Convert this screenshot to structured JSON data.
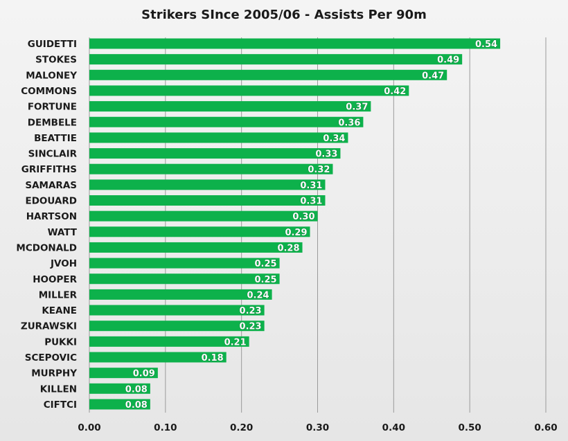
{
  "chart_data": {
    "type": "bar",
    "orientation": "horizontal",
    "title": "Strikers SInce 2005/06 - Assists Per 90m",
    "xlabel": "",
    "ylabel": "",
    "xlim": [
      0,
      0.6
    ],
    "x_ticks": [
      "0.00",
      "0.10",
      "0.20",
      "0.30",
      "0.40",
      "0.50",
      "0.60"
    ],
    "grid": true,
    "bar_color": "#0db14b",
    "categories": [
      "GUIDETTI",
      "STOKES",
      "MALONEY",
      "COMMONS",
      "FORTUNE",
      "DEMBELE",
      "BEATTIE",
      "SINCLAIR",
      "GRIFFITHS",
      "SAMARAS",
      "EDOUARD",
      "HARTSON",
      "WATT",
      "MCDONALD",
      "JVOH",
      "HOOPER",
      "MILLER",
      "KEANE",
      "ZURAWSKI",
      "PUKKI",
      "SCEPOVIC",
      "MURPHY",
      "KILLEN",
      "CIFTCI"
    ],
    "values": [
      0.54,
      0.49,
      0.47,
      0.42,
      0.37,
      0.36,
      0.34,
      0.33,
      0.32,
      0.31,
      0.31,
      0.3,
      0.29,
      0.28,
      0.25,
      0.25,
      0.24,
      0.23,
      0.23,
      0.21,
      0.18,
      0.09,
      0.08,
      0.08
    ],
    "value_labels": [
      "0.54",
      "0.49",
      "0.47",
      "0.42",
      "0.37",
      "0.36",
      "0.34",
      "0.33",
      "0.32",
      "0.31",
      "0.31",
      "0.30",
      "0.29",
      "0.28",
      "0.25",
      "0.25",
      "0.24",
      "0.23",
      "0.23",
      "0.21",
      "0.18",
      "0.09",
      "0.08",
      "0.08"
    ]
  }
}
